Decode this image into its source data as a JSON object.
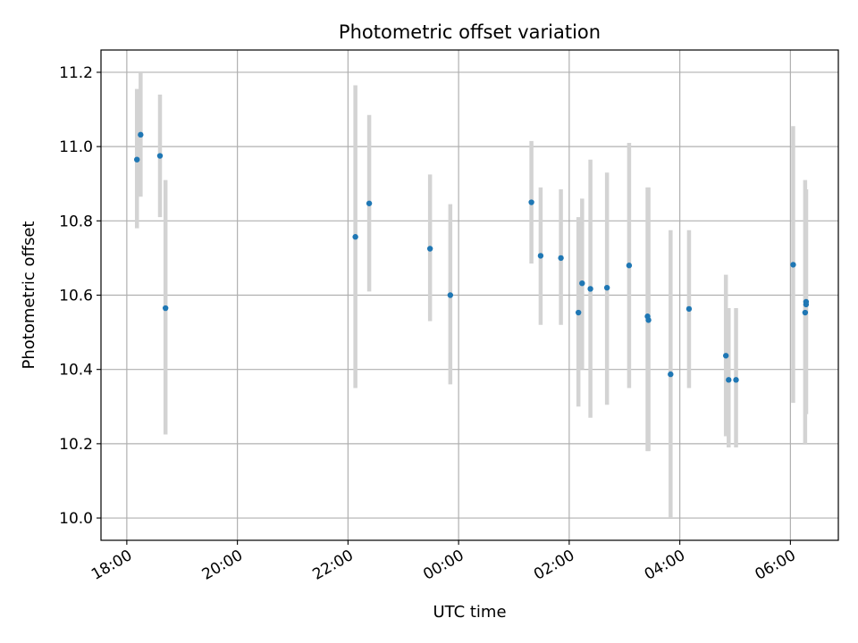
{
  "chart_data": {
    "type": "scatter",
    "title": "Photometric offset variation",
    "xlabel": "UTC time",
    "ylabel": "Photometric offset",
    "x_axis_kind": "time",
    "xlim": [
      "17:32",
      "06:52"
    ],
    "ylim": [
      9.94,
      11.26
    ],
    "grid": true,
    "x_ticks": [
      "18:00",
      "20:00",
      "22:00",
      "00:00",
      "02:00",
      "04:00",
      "06:00"
    ],
    "y_ticks": [
      "10.0",
      "10.2",
      "10.4",
      "10.6",
      "10.8",
      "11.0",
      "11.2"
    ],
    "point_color": "#1f77b4",
    "errorbar_color": "#d3d3d3",
    "points": [
      {
        "x": "18:11",
        "y": 10.965,
        "lo": 10.78,
        "hi": 11.155
      },
      {
        "x": "18:15",
        "y": 11.032,
        "lo": 10.865,
        "hi": 11.2
      },
      {
        "x": "18:36",
        "y": 10.975,
        "lo": 10.81,
        "hi": 11.14
      },
      {
        "x": "18:42",
        "y": 10.565,
        "lo": 10.225,
        "hi": 10.91
      },
      {
        "x": "22:08",
        "y": 10.757,
        "lo": 10.35,
        "hi": 11.165
      },
      {
        "x": "22:23",
        "y": 10.847,
        "lo": 10.61,
        "hi": 11.085
      },
      {
        "x": "23:29",
        "y": 10.725,
        "lo": 10.53,
        "hi": 10.925
      },
      {
        "x": "23:51",
        "y": 10.6,
        "lo": 10.36,
        "hi": 10.845
      },
      {
        "x": "01:19",
        "y": 10.85,
        "lo": 10.685,
        "hi": 11.015
      },
      {
        "x": "01:29",
        "y": 10.706,
        "lo": 10.52,
        "hi": 10.89
      },
      {
        "x": "01:51",
        "y": 10.7,
        "lo": 10.52,
        "hi": 10.885
      },
      {
        "x": "02:10",
        "y": 10.553,
        "lo": 10.3,
        "hi": 10.81
      },
      {
        "x": "02:14",
        "y": 10.632,
        "lo": 10.4,
        "hi": 10.86
      },
      {
        "x": "02:23",
        "y": 10.617,
        "lo": 10.27,
        "hi": 10.965
      },
      {
        "x": "02:41",
        "y": 10.62,
        "lo": 10.305,
        "hi": 10.93
      },
      {
        "x": "03:05",
        "y": 10.68,
        "lo": 10.35,
        "hi": 11.01
      },
      {
        "x": "03:25",
        "y": 10.543,
        "lo": 10.18,
        "hi": 10.89
      },
      {
        "x": "03:26",
        "y": 10.533,
        "lo": 10.18,
        "hi": 10.89
      },
      {
        "x": "03:50",
        "y": 10.387,
        "lo": 10.0,
        "hi": 10.775
      },
      {
        "x": "04:10",
        "y": 10.563,
        "lo": 10.35,
        "hi": 10.775
      },
      {
        "x": "04:50",
        "y": 10.437,
        "lo": 10.22,
        "hi": 10.655
      },
      {
        "x": "04:53",
        "y": 10.372,
        "lo": 10.19,
        "hi": 10.565
      },
      {
        "x": "05:01",
        "y": 10.372,
        "lo": 10.19,
        "hi": 10.565
      },
      {
        "x": "06:03",
        "y": 10.682,
        "lo": 10.31,
        "hi": 11.055
      },
      {
        "x": "06:16",
        "y": 10.553,
        "lo": 10.2,
        "hi": 10.91
      },
      {
        "x": "06:17",
        "y": 10.575,
        "lo": 10.28,
        "hi": 10.885
      },
      {
        "x": "06:17",
        "y": 10.582,
        "lo": 10.28,
        "hi": 10.885
      }
    ]
  }
}
